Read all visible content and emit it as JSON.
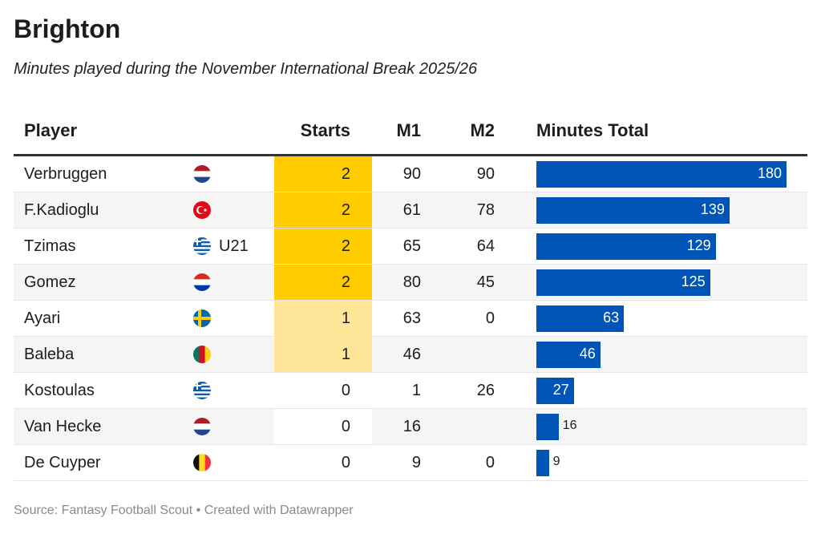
{
  "title": "Brighton",
  "subtitle": "Minutes played during the November International Break 2025/26",
  "headers": {
    "player": "Player",
    "starts": "Starts",
    "m1": "M1",
    "m2": "M2",
    "total": "Minutes Total"
  },
  "colors": {
    "bar": "#0054b8",
    "starts2": "#ffcc00",
    "starts1": "#ffe699"
  },
  "chart_data": {
    "type": "table",
    "columns": [
      "Player",
      "Flag",
      "Starts",
      "M1",
      "M2",
      "Minutes Total"
    ],
    "rows": [
      {
        "player": "Verbruggen",
        "flag": "netherlands-flag-icon",
        "note": "",
        "starts": "2",
        "m1": "90",
        "m2": "90",
        "total": 180
      },
      {
        "player": "F.Kadioglu",
        "flag": "turkey-flag-icon",
        "note": "",
        "starts": "2",
        "m1": "61",
        "m2": "78",
        "total": 139
      },
      {
        "player": "Tzimas",
        "flag": "greece-flag-icon",
        "note": "U21",
        "starts": "2",
        "m1": "65",
        "m2": "64",
        "total": 129
      },
      {
        "player": "Gomez",
        "flag": "paraguay-flag-icon",
        "note": "",
        "starts": "2",
        "m1": "80",
        "m2": "45",
        "total": 125
      },
      {
        "player": "Ayari",
        "flag": "sweden-flag-icon",
        "note": "",
        "starts": "1",
        "m1": "63",
        "m2": "0",
        "total": 63
      },
      {
        "player": "Baleba",
        "flag": "cameroon-flag-icon",
        "note": "",
        "starts": "1",
        "m1": "46",
        "m2": "",
        "total": 46
      },
      {
        "player": "Kostoulas",
        "flag": "greece-flag-icon",
        "note": "",
        "starts": "0",
        "m1": "1",
        "m2": "26",
        "total": 27
      },
      {
        "player": "Van Hecke",
        "flag": "netherlands-flag-icon",
        "note": "",
        "starts": "0",
        "m1": "16",
        "m2": "",
        "total": 16
      },
      {
        "player": "De Cuyper",
        "flag": "belgium-flag-icon",
        "note": "",
        "starts": "0",
        "m1": "9",
        "m2": "0",
        "total": 9
      }
    ]
  },
  "footer": "Source: Fantasy Football Scout • Created with Datawrapper"
}
